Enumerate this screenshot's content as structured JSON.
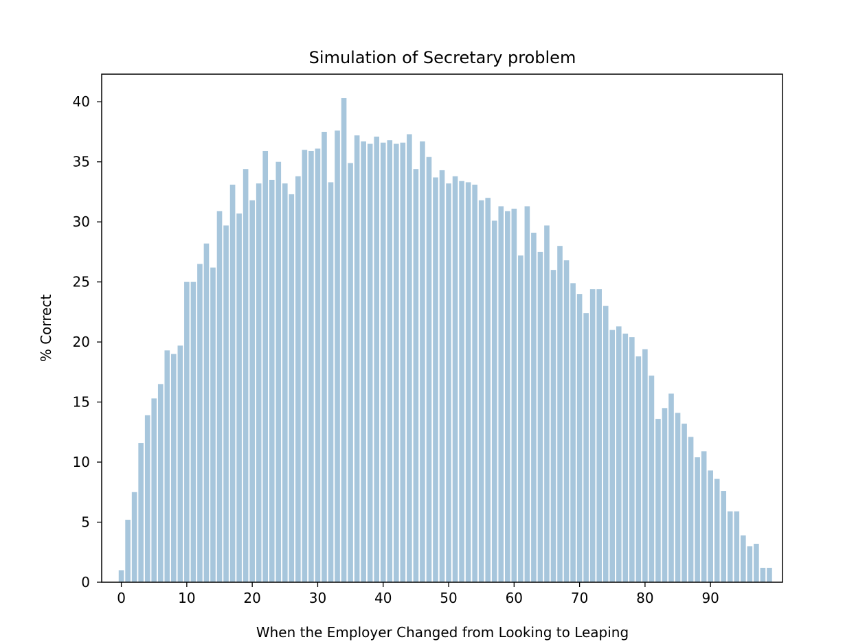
{
  "chart_data": {
    "type": "bar",
    "title": "Simulation of Secretary problem",
    "xlabel": "When the Employer Changed from Looking to Leaping",
    "ylabel": "% Correct",
    "x": [
      0,
      1,
      2,
      3,
      4,
      5,
      6,
      7,
      8,
      9,
      10,
      11,
      12,
      13,
      14,
      15,
      16,
      17,
      18,
      19,
      20,
      21,
      22,
      23,
      24,
      25,
      26,
      27,
      28,
      29,
      30,
      31,
      32,
      33,
      34,
      35,
      36,
      37,
      38,
      39,
      40,
      41,
      42,
      43,
      44,
      45,
      46,
      47,
      48,
      49,
      50,
      51,
      52,
      53,
      54,
      55,
      56,
      57,
      58,
      59,
      60,
      61,
      62,
      63,
      64,
      65,
      66,
      67,
      68,
      69,
      70,
      71,
      72,
      73,
      74,
      75,
      76,
      77,
      78,
      79,
      80,
      81,
      82,
      83,
      84,
      85,
      86,
      87,
      88,
      89,
      90,
      91,
      92,
      93,
      94,
      95,
      96,
      97,
      98,
      99
    ],
    "values": [
      1.0,
      5.2,
      7.5,
      11.6,
      13.9,
      15.3,
      16.5,
      19.3,
      19.0,
      19.7,
      25.0,
      25.0,
      26.5,
      28.2,
      26.2,
      30.9,
      29.7,
      33.1,
      30.7,
      34.4,
      31.8,
      33.2,
      35.9,
      33.5,
      35.0,
      33.2,
      32.3,
      33.8,
      36.0,
      35.9,
      36.1,
      37.5,
      33.3,
      37.6,
      40.3,
      34.9,
      37.2,
      36.7,
      36.5,
      37.1,
      36.6,
      36.8,
      36.5,
      36.6,
      37.3,
      34.4,
      36.7,
      35.4,
      33.7,
      34.3,
      33.2,
      33.8,
      33.4,
      33.3,
      33.1,
      31.8,
      32.0,
      30.1,
      31.3,
      30.9,
      31.1,
      27.2,
      31.3,
      29.1,
      27.5,
      29.7,
      26.0,
      28.0,
      26.8,
      24.9,
      24.0,
      22.4,
      24.4,
      24.4,
      23.0,
      21.0,
      21.3,
      20.7,
      20.4,
      18.8,
      19.4,
      17.2,
      13.6,
      14.5,
      15.7,
      14.1,
      13.2,
      12.1,
      10.4,
      10.9,
      9.3,
      8.6,
      7.6,
      5.9,
      5.9,
      3.9,
      3.0,
      3.2,
      1.2,
      1.2
    ],
    "xticks": [
      "0",
      "10",
      "20",
      "30",
      "40",
      "50",
      "60",
      "70",
      "80",
      "90"
    ],
    "yticks": [
      "0",
      "5",
      "10",
      "15",
      "20",
      "25",
      "30",
      "35",
      "40"
    ],
    "xlim": [
      -3,
      101
    ],
    "ylim": [
      0,
      42.3
    ],
    "bar_color": "#a7c6dc",
    "grid": false,
    "legend": "none"
  }
}
